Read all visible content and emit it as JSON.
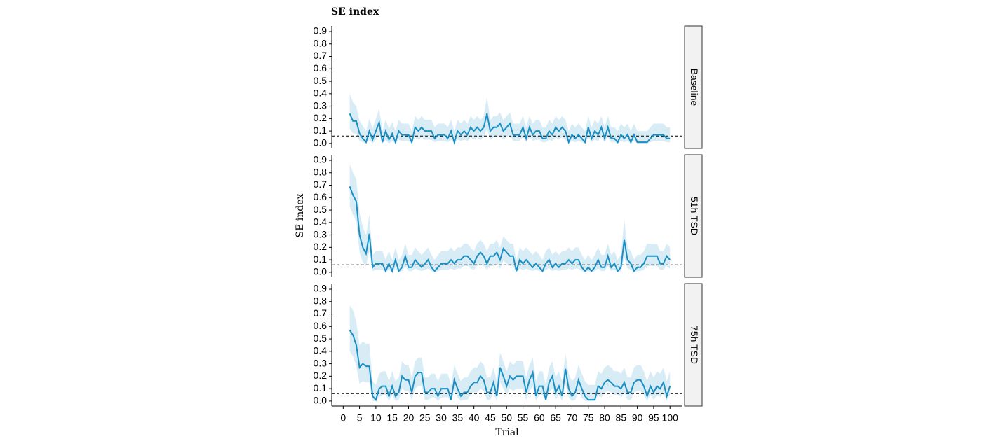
{
  "chart_data": {
    "type": "line",
    "title": "SE index",
    "xlabel": "Trial",
    "ylabel": "SE index",
    "color": "#1a8fc4",
    "band_color": "#d8ecf6",
    "reference_line": 0.06,
    "x": [
      2,
      3,
      4,
      5,
      6,
      7,
      8,
      9,
      10,
      11,
      12,
      13,
      14,
      15,
      16,
      17,
      18,
      19,
      20,
      21,
      22,
      23,
      24,
      25,
      26,
      27,
      28,
      29,
      30,
      31,
      32,
      33,
      34,
      35,
      36,
      37,
      38,
      39,
      40,
      41,
      42,
      43,
      44,
      45,
      46,
      47,
      48,
      49,
      50,
      51,
      52,
      53,
      54,
      55,
      56,
      57,
      58,
      59,
      60,
      61,
      62,
      63,
      64,
      65,
      66,
      67,
      68,
      69,
      70,
      71,
      72,
      73,
      74,
      75,
      76,
      77,
      78,
      79,
      80,
      81,
      82,
      83,
      84,
      85,
      86,
      87,
      88,
      89,
      90,
      91,
      92,
      93,
      94,
      95,
      96,
      97,
      98,
      99,
      100
    ],
    "xlim": [
      -3.5,
      103.6
    ],
    "xticks": [
      0,
      5,
      10,
      15,
      20,
      25,
      30,
      35,
      40,
      45,
      50,
      55,
      60,
      65,
      70,
      75,
      80,
      85,
      90,
      95,
      100
    ],
    "ylim": [
      -0.04,
      0.945
    ],
    "yticks": [
      {
        "value": 0,
        "label": "0.0"
      },
      0.1,
      0.2,
      0.3,
      0.4,
      0.5,
      0.6,
      0.7,
      0.8,
      0.9
    ],
    "panels": [
      {
        "name": "Baseline",
        "values": [
          0.24,
          0.18,
          0.18,
          0.08,
          0.04,
          0.01,
          0.1,
          0.03,
          0.1,
          0.17,
          0.01,
          0.1,
          0.03,
          0.08,
          0.01,
          0.1,
          0.07,
          0.07,
          0.07,
          0.01,
          0.13,
          0.1,
          0.13,
          0.1,
          0.1,
          0.1,
          0.04,
          0.07,
          0.07,
          0.07,
          0.04,
          0.1,
          0.01,
          0.1,
          0.07,
          0.1,
          0.07,
          0.13,
          0.1,
          0.13,
          0.1,
          0.13,
          0.24,
          0.1,
          0.13,
          0.13,
          0.16,
          0.1,
          0.13,
          0.16,
          0.07,
          0.07,
          0.07,
          0.13,
          0.04,
          0.13,
          0.07,
          0.1,
          0.1,
          0.04,
          0.04,
          0.1,
          0.07,
          0.13,
          0.1,
          0.13,
          0.1,
          0.01,
          0.07,
          0.04,
          0.07,
          0.04,
          0.01,
          0.13,
          0.04,
          0.1,
          0.07,
          0.13,
          0.04,
          0.13,
          0.04,
          0.04,
          0.01,
          0.07,
          0.04,
          0.07,
          0.01,
          0.07,
          0.01,
          0.01,
          0.01,
          0.01,
          0.04,
          0.07,
          0.07,
          0.07,
          0.07,
          0.04,
          0.04
        ],
        "upper": [
          0.4,
          0.33,
          0.3,
          0.18,
          0.14,
          0.1,
          0.2,
          0.12,
          0.2,
          0.28,
          0.1,
          0.19,
          0.12,
          0.17,
          0.1,
          0.19,
          0.16,
          0.16,
          0.16,
          0.1,
          0.22,
          0.19,
          0.22,
          0.19,
          0.19,
          0.19,
          0.13,
          0.16,
          0.16,
          0.16,
          0.13,
          0.19,
          0.1,
          0.19,
          0.16,
          0.19,
          0.16,
          0.22,
          0.19,
          0.22,
          0.19,
          0.22,
          0.38,
          0.19,
          0.22,
          0.22,
          0.25,
          0.19,
          0.22,
          0.25,
          0.16,
          0.16,
          0.16,
          0.22,
          0.13,
          0.22,
          0.16,
          0.19,
          0.19,
          0.13,
          0.13,
          0.19,
          0.16,
          0.22,
          0.19,
          0.22,
          0.19,
          0.1,
          0.16,
          0.13,
          0.16,
          0.13,
          0.1,
          0.22,
          0.13,
          0.19,
          0.16,
          0.22,
          0.13,
          0.22,
          0.13,
          0.13,
          0.1,
          0.16,
          0.13,
          0.16,
          0.1,
          0.16,
          0.1,
          0.1,
          0.1,
          0.1,
          0.13,
          0.16,
          0.16,
          0.16,
          0.16,
          0.13,
          0.13
        ],
        "lower": [
          0.12,
          0.08,
          0.08,
          0.02,
          0.01,
          0,
          0.03,
          0,
          0.03,
          0.07,
          0,
          0.03,
          0,
          0.02,
          0,
          0.03,
          0.02,
          0.02,
          0.02,
          0,
          0.05,
          0.03,
          0.05,
          0.03,
          0.03,
          0.03,
          0.01,
          0.02,
          0.02,
          0.02,
          0.01,
          0.03,
          0,
          0.03,
          0.02,
          0.03,
          0.02,
          0.05,
          0.03,
          0.05,
          0.03,
          0.05,
          0.12,
          0.03,
          0.05,
          0.05,
          0.07,
          0.03,
          0.05,
          0.07,
          0.02,
          0.02,
          0.02,
          0.05,
          0.01,
          0.05,
          0.02,
          0.03,
          0.03,
          0.01,
          0.01,
          0.03,
          0.02,
          0.05,
          0.03,
          0.05,
          0.03,
          0,
          0.02,
          0.01,
          0.02,
          0.01,
          0,
          0.05,
          0.01,
          0.03,
          0.02,
          0.05,
          0.01,
          0.05,
          0.01,
          0.01,
          0,
          0.02,
          0.01,
          0.02,
          0,
          0.02,
          0,
          0,
          0,
          0,
          0.01,
          0.02,
          0.02,
          0.02,
          0.02,
          0.01,
          0.01
        ]
      },
      {
        "name": "51h TSD",
        "values": [
          0.69,
          0.62,
          0.57,
          0.3,
          0.2,
          0.15,
          0.31,
          0.04,
          0.07,
          0.07,
          0.07,
          0.01,
          0.07,
          0.01,
          0.1,
          0.01,
          0.04,
          0.13,
          0.04,
          0.04,
          0.1,
          0.07,
          0.04,
          0.07,
          0.1,
          0.04,
          0.01,
          0.04,
          0.07,
          0.07,
          0.07,
          0.1,
          0.07,
          0.1,
          0.1,
          0.13,
          0.13,
          0.1,
          0.07,
          0.13,
          0.16,
          0.13,
          0.07,
          0.13,
          0.13,
          0.16,
          0.1,
          0.19,
          0.16,
          0.13,
          0.13,
          0.01,
          0.1,
          0.07,
          0.1,
          0.07,
          0.04,
          0.07,
          0.04,
          0.01,
          0.07,
          0.1,
          0.04,
          0.07,
          0.04,
          0.07,
          0.07,
          0.1,
          0.07,
          0.1,
          0.1,
          0.04,
          0.01,
          0.04,
          0.01,
          0.04,
          0.1,
          0.04,
          0.04,
          0.13,
          0.04,
          0.07,
          0.01,
          0.04,
          0.26,
          0.1,
          0.07,
          0.01,
          0.04,
          0.04,
          0.07,
          0.13,
          0.13,
          0.13,
          0.13,
          0.07,
          0.07,
          0.13,
          0.1
        ],
        "upper": [
          0.87,
          0.8,
          0.75,
          0.48,
          0.36,
          0.3,
          0.46,
          0.14,
          0.17,
          0.17,
          0.17,
          0.1,
          0.17,
          0.1,
          0.2,
          0.1,
          0.14,
          0.23,
          0.14,
          0.14,
          0.2,
          0.17,
          0.14,
          0.17,
          0.2,
          0.14,
          0.1,
          0.14,
          0.17,
          0.17,
          0.17,
          0.2,
          0.17,
          0.2,
          0.2,
          0.23,
          0.23,
          0.2,
          0.17,
          0.23,
          0.26,
          0.23,
          0.17,
          0.23,
          0.23,
          0.26,
          0.2,
          0.29,
          0.26,
          0.23,
          0.23,
          0.1,
          0.2,
          0.17,
          0.2,
          0.17,
          0.14,
          0.17,
          0.14,
          0.1,
          0.17,
          0.2,
          0.14,
          0.17,
          0.14,
          0.17,
          0.17,
          0.2,
          0.17,
          0.2,
          0.2,
          0.14,
          0.1,
          0.14,
          0.1,
          0.14,
          0.2,
          0.14,
          0.14,
          0.23,
          0.14,
          0.17,
          0.1,
          0.14,
          0.43,
          0.2,
          0.17,
          0.1,
          0.14,
          0.14,
          0.17,
          0.23,
          0.23,
          0.23,
          0.23,
          0.17,
          0.17,
          0.23,
          0.2
        ],
        "lower": [
          0.53,
          0.46,
          0.41,
          0.16,
          0.08,
          0.05,
          0.17,
          0.01,
          0.02,
          0.02,
          0.02,
          0,
          0.02,
          0,
          0.03,
          0,
          0.01,
          0.05,
          0.01,
          0.01,
          0.03,
          0.02,
          0.01,
          0.02,
          0.03,
          0.01,
          0,
          0.01,
          0.02,
          0.02,
          0.02,
          0.03,
          0.02,
          0.03,
          0.03,
          0.05,
          0.05,
          0.03,
          0.02,
          0.05,
          0.07,
          0.05,
          0.02,
          0.05,
          0.05,
          0.07,
          0.03,
          0.09,
          0.07,
          0.05,
          0.05,
          0,
          0.03,
          0.02,
          0.03,
          0.02,
          0.01,
          0.02,
          0.01,
          0,
          0.02,
          0.03,
          0.01,
          0.02,
          0.01,
          0.02,
          0.02,
          0.03,
          0.02,
          0.03,
          0.03,
          0.01,
          0,
          0.01,
          0,
          0.01,
          0.03,
          0.01,
          0.01,
          0.05,
          0.01,
          0.02,
          0,
          0.01,
          0.12,
          0.03,
          0.02,
          0,
          0.01,
          0.01,
          0.02,
          0.05,
          0.05,
          0.05,
          0.05,
          0.02,
          0.02,
          0.05,
          0.03
        ]
      },
      {
        "name": "75h TSD",
        "values": [
          0.57,
          0.53,
          0.45,
          0.27,
          0.3,
          0.28,
          0.28,
          0.04,
          0.01,
          0.1,
          0.12,
          0.12,
          0.04,
          0.12,
          0.04,
          0.07,
          0.2,
          0.17,
          0.17,
          0.07,
          0.2,
          0.23,
          0.23,
          0.07,
          0.07,
          0.1,
          0.1,
          0.04,
          0.1,
          0.1,
          0.1,
          0.01,
          0.17,
          0.1,
          0.04,
          0.07,
          0.07,
          0.12,
          0.15,
          0.15,
          0.2,
          0.17,
          0.07,
          0.07,
          0.15,
          0.04,
          0.27,
          0.2,
          0.12,
          0.2,
          0.17,
          0.2,
          0.2,
          0.2,
          0.07,
          0.17,
          0.23,
          0.04,
          0.12,
          0.12,
          0.01,
          0.15,
          0.2,
          0.07,
          0.12,
          0.04,
          0.26,
          0.1,
          0.04,
          0.07,
          0.17,
          0.1,
          0.04,
          0.01,
          0.01,
          0.01,
          0.12,
          0.1,
          0.15,
          0.17,
          0.15,
          0.12,
          0.12,
          0.1,
          0.15,
          0.07,
          0.07,
          0.15,
          0.17,
          0.17,
          0.12,
          0.04,
          0.12,
          0.07,
          0.12,
          0.1,
          0.15,
          0.04,
          0.12
        ],
        "upper": [
          0.77,
          0.73,
          0.64,
          0.45,
          0.48,
          0.46,
          0.46,
          0.16,
          0.13,
          0.22,
          0.24,
          0.24,
          0.16,
          0.24,
          0.16,
          0.19,
          0.32,
          0.29,
          0.29,
          0.19,
          0.32,
          0.35,
          0.35,
          0.19,
          0.19,
          0.22,
          0.22,
          0.16,
          0.22,
          0.22,
          0.22,
          0.13,
          0.29,
          0.22,
          0.16,
          0.19,
          0.19,
          0.24,
          0.27,
          0.27,
          0.32,
          0.29,
          0.19,
          0.19,
          0.27,
          0.16,
          0.39,
          0.32,
          0.24,
          0.32,
          0.29,
          0.32,
          0.32,
          0.32,
          0.19,
          0.29,
          0.35,
          0.16,
          0.24,
          0.24,
          0.13,
          0.27,
          0.32,
          0.19,
          0.24,
          0.16,
          0.38,
          0.22,
          0.16,
          0.19,
          0.29,
          0.22,
          0.16,
          0.13,
          0.13,
          0.13,
          0.24,
          0.22,
          0.27,
          0.29,
          0.27,
          0.24,
          0.24,
          0.22,
          0.27,
          0.19,
          0.19,
          0.27,
          0.29,
          0.29,
          0.24,
          0.16,
          0.24,
          0.19,
          0.24,
          0.22,
          0.27,
          0.16,
          0.24
        ],
        "lower": [
          0.4,
          0.36,
          0.28,
          0.14,
          0.16,
          0.15,
          0.15,
          0,
          0,
          0.03,
          0.05,
          0.05,
          0,
          0.05,
          0,
          0.01,
          0.1,
          0.08,
          0.08,
          0.01,
          0.1,
          0.12,
          0.12,
          0.01,
          0.01,
          0.03,
          0.03,
          0,
          0.03,
          0.03,
          0.03,
          0,
          0.08,
          0.03,
          0,
          0.01,
          0.01,
          0.05,
          0.07,
          0.07,
          0.1,
          0.08,
          0.01,
          0.01,
          0.07,
          0,
          0.15,
          0.1,
          0.05,
          0.1,
          0.08,
          0.1,
          0.1,
          0.1,
          0.01,
          0.08,
          0.12,
          0,
          0.05,
          0.05,
          0,
          0.07,
          0.1,
          0.01,
          0.05,
          0,
          0.14,
          0.03,
          0,
          0.01,
          0.08,
          0.03,
          0,
          0,
          0,
          0,
          0.05,
          0.03,
          0.07,
          0.08,
          0.07,
          0.05,
          0.05,
          0.03,
          0.07,
          0.01,
          0.01,
          0.07,
          0.08,
          0.08,
          0.05,
          0,
          0.05,
          0.01,
          0.05,
          0.03,
          0.07,
          0,
          0.05
        ]
      }
    ]
  }
}
